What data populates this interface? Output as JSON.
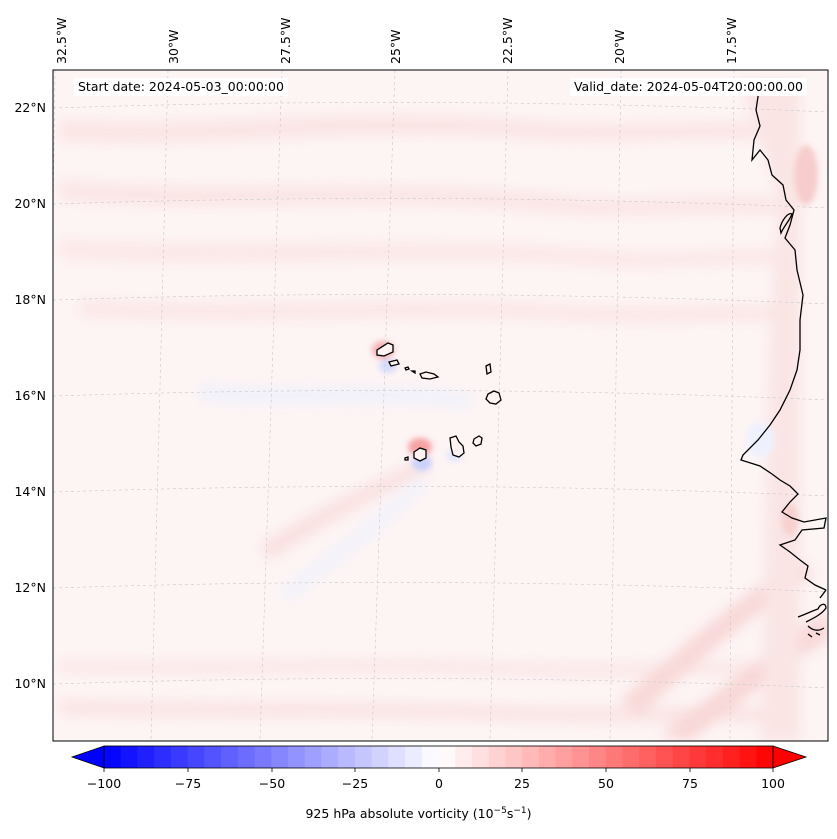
{
  "map": {
    "start_date_text": "Start date: 2024-05-03_00:00:00",
    "valid_date_text": "Valid_date: 2024-05-04T20:00:00.00",
    "lon_labels": [
      "32.5°W",
      "30°W",
      "27.5°W",
      "25°W",
      "22.5°W",
      "20°W",
      "17.5°W"
    ],
    "lat_labels": [
      "22°N",
      "20°N",
      "18°N",
      "16°N",
      "14°N",
      "12°N",
      "10°N"
    ],
    "extent": {
      "lon_min": -33.0,
      "lon_max": -15.5,
      "lat_min": 9.0,
      "lat_max": 22.8
    },
    "field": "925 hPa absolute vorticity",
    "features": [
      "Cabo Verde islands",
      "West African coastline"
    ]
  },
  "colorbar": {
    "label_main": "925 hPa absolute vorticity (10",
    "label_exp1": "−5",
    "label_mid": "s",
    "label_exp2": "−1",
    "label_end": ")",
    "ticks": [
      "−100",
      "−75",
      "−50",
      "−25",
      "0",
      "25",
      "50",
      "75",
      "100"
    ],
    "min": -100,
    "max": 100,
    "step": 5,
    "colors": {
      "negative": "#0000ff",
      "zero": "#ffffff",
      "positive": "#ff0000"
    }
  }
}
